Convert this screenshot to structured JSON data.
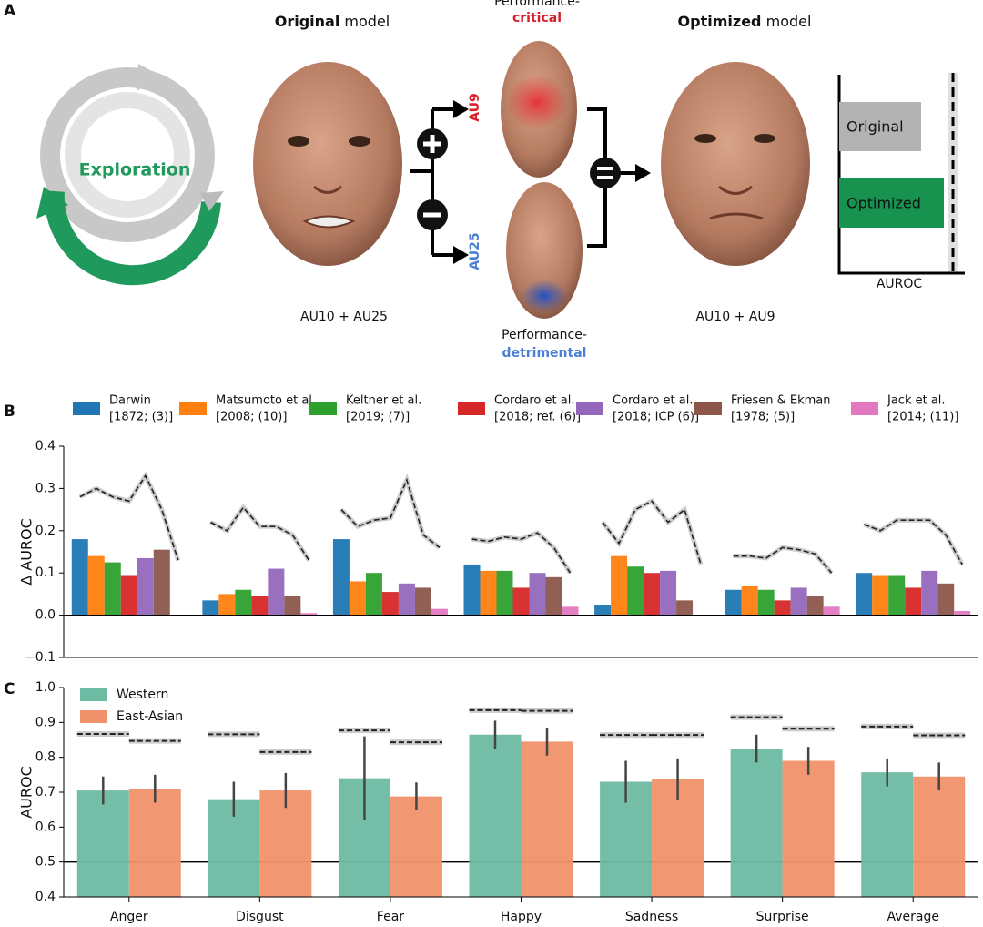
{
  "diagram": {
    "panel_label": "A",
    "original_title_bold": "Original",
    "original_title_rest": "model",
    "optimized_title_bold": "Optimized",
    "optimized_title_rest": "model",
    "critical_prefix": "Performance-",
    "critical_word": "critical",
    "detrimental_prefix": "Performance-",
    "detrimental_word": "detrimental",
    "cycle_label": "Exploration",
    "au_top": "AU9",
    "au_bottom": "AU25",
    "original_caption": "AU10 + AU25",
    "optimized_caption": "AU10 + AU9",
    "mini_bar_original": "Original",
    "mini_bar_optimized": "Optimized",
    "mini_axis": "AUROC"
  },
  "chart_data": [
    {
      "type": "bar",
      "panel_label": "B",
      "ylabel": "Δ AUROC",
      "ylim": [
        -0.1,
        0.4
      ],
      "yticks": [
        {
          "value": -0.1,
          "label": "−0.1"
        },
        {
          "value": 0,
          "label": "0.0"
        },
        0.1,
        0.2,
        0.3,
        0.4
      ],
      "series": [
        {
          "name": "Darwin",
          "citation": "[1872; (3)]",
          "color": "#1f77b4",
          "values": [
            0.18,
            0.035,
            0.18,
            0.12,
            0.025,
            0.06,
            0.1
          ],
          "ceiling": [
            0.28,
            0.22,
            0.25,
            0.18,
            0.22,
            0.14,
            0.215
          ]
        },
        {
          "name": "Matsumoto et al.",
          "citation": "[2008; (10)]",
          "color": "#ff7f0e",
          "values": [
            0.14,
            0.05,
            0.08,
            0.105,
            0.14,
            0.07,
            0.095
          ],
          "ceiling": [
            0.3,
            0.2,
            0.21,
            0.175,
            0.17,
            0.14,
            0.2
          ]
        },
        {
          "name": "Keltner et al.",
          "citation": "[2019; (7)]",
          "color": "#2ca02c",
          "values": [
            0.125,
            0.06,
            0.1,
            0.105,
            0.115,
            0.06,
            0.095
          ],
          "ceiling": [
            0.28,
            0.255,
            0.225,
            0.185,
            0.25,
            0.135,
            0.225
          ]
        },
        {
          "name": "Cordaro et al.",
          "citation": "[2018; ref. (6)]",
          "color": "#d62728",
          "values": [
            0.095,
            0.045,
            0.055,
            0.065,
            0.1,
            0.035,
            0.065
          ],
          "ceiling": [
            0.27,
            0.21,
            0.23,
            0.18,
            0.27,
            0.16,
            0.225
          ]
        },
        {
          "name": "Cordaro et al.",
          "citation": "[2018; ICP (6)]",
          "color": "#9467bd",
          "values": [
            0.135,
            0.11,
            0.075,
            0.1,
            0.105,
            0.065,
            0.105
          ],
          "ceiling": [
            0.33,
            0.21,
            0.32,
            0.195,
            0.22,
            0.155,
            0.225
          ]
        },
        {
          "name": "Friesen & Ekman",
          "citation": "[1978; (5)]",
          "color": "#8c564b",
          "values": [
            0.155,
            0.045,
            0.065,
            0.09,
            0.035,
            0.045,
            0.075
          ],
          "ceiling": [
            0.25,
            0.19,
            0.19,
            0.16,
            0.25,
            0.145,
            0.19
          ]
        },
        {
          "name": "Jack et al.",
          "citation": "[2014; (11)]",
          "color": "#e377c2",
          "values": [
            0.0,
            0.005,
            0.015,
            0.02,
            0.0,
            0.02,
            0.01
          ],
          "ceiling": [
            0.13,
            0.13,
            0.16,
            0.1,
            0.12,
            0.1,
            0.12
          ]
        }
      ]
    },
    {
      "type": "bar",
      "panel_label": "C",
      "ylabel": "AUROC",
      "categories": [
        "Anger",
        "Disgust",
        "Fear",
        "Happy",
        "Sadness",
        "Surprise",
        "Average"
      ],
      "ylim": [
        0.4,
        1.0
      ],
      "yticks": [
        0.4,
        0.5,
        0.6,
        0.7,
        0.8,
        0.9,
        {
          "value": 1.0,
          "label": "1.0"
        }
      ],
      "reference_line": 0.5,
      "series": [
        {
          "name": "Western",
          "color": "#6dbba3",
          "values": [
            0.705,
            0.68,
            0.74,
            0.865,
            0.73,
            0.825,
            0.757
          ],
          "errors": [
            0.04,
            0.05,
            0.12,
            0.04,
            0.06,
            0.04,
            0.04
          ],
          "ceiling": [
            0.867,
            0.866,
            0.877,
            0.935,
            0.864,
            0.915,
            0.888
          ]
        },
        {
          "name": "East-Asian",
          "color": "#f0926c",
          "values": [
            0.71,
            0.705,
            0.688,
            0.845,
            0.737,
            0.79,
            0.745
          ],
          "errors": [
            0.04,
            0.05,
            0.04,
            0.04,
            0.06,
            0.04,
            0.04
          ],
          "ceiling": [
            0.847,
            0.815,
            0.843,
            0.933,
            0.864,
            0.882,
            0.863
          ]
        }
      ]
    }
  ]
}
